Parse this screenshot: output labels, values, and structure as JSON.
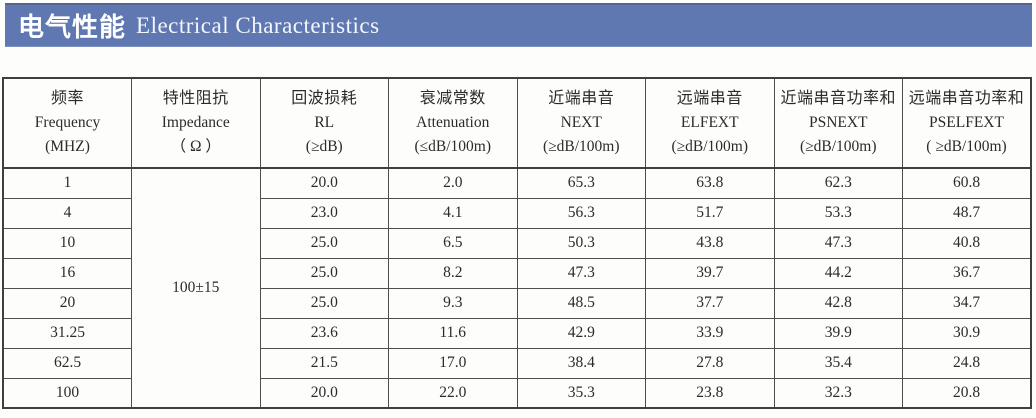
{
  "banner": {
    "title_zh": "电气性能",
    "title_en": "Electrical Characteristics",
    "bg_color": "#5f78b2"
  },
  "table": {
    "columns": [
      {
        "zh": "频率",
        "en": "Frequency",
        "unit": "(MHZ)"
      },
      {
        "zh": "特性阻抗",
        "en": "Impedance",
        "unit": "（ Ω ）"
      },
      {
        "zh": "回波损耗",
        "en": "RL",
        "unit": "(≥dB)"
      },
      {
        "zh": "衰减常数",
        "en": "Attenuation",
        "unit": "(≤dB/100m)"
      },
      {
        "zh": "近端串音",
        "en": "NEXT",
        "unit": "(≥dB/100m)"
      },
      {
        "zh": "远端串音",
        "en": "ELFEXT",
        "unit": "(≥dB/100m)"
      },
      {
        "zh": "近端串音功率和",
        "en": "PSNEXT",
        "unit": "(≥dB/100m)"
      },
      {
        "zh": "远端串音功率和",
        "en": "PSELFEXT",
        "unit": "( ≥dB/100m)"
      }
    ],
    "impedance_value": "100±15",
    "rows": [
      {
        "frequency": "1",
        "rl": "20.0",
        "attenuation": "2.0",
        "next": "65.3",
        "elfext": "63.8",
        "psnext": "62.3",
        "pselfext": "60.8"
      },
      {
        "frequency": "4",
        "rl": "23.0",
        "attenuation": "4.1",
        "next": "56.3",
        "elfext": "51.7",
        "psnext": "53.3",
        "pselfext": "48.7"
      },
      {
        "frequency": "10",
        "rl": "25.0",
        "attenuation": "6.5",
        "next": "50.3",
        "elfext": "43.8",
        "psnext": "47.3",
        "pselfext": "40.8"
      },
      {
        "frequency": "16",
        "rl": "25.0",
        "attenuation": "8.2",
        "next": "47.3",
        "elfext": "39.7",
        "psnext": "44.2",
        "pselfext": "36.7"
      },
      {
        "frequency": "20",
        "rl": "25.0",
        "attenuation": "9.3",
        "next": "48.5",
        "elfext": "37.7",
        "psnext": "42.8",
        "pselfext": "34.7"
      },
      {
        "frequency": "31.25",
        "rl": "23.6",
        "attenuation": "11.6",
        "next": "42.9",
        "elfext": "33.9",
        "psnext": "39.9",
        "pselfext": "30.9"
      },
      {
        "frequency": "62.5",
        "rl": "21.5",
        "attenuation": "17.0",
        "next": "38.4",
        "elfext": "27.8",
        "psnext": "35.4",
        "pselfext": "24.8"
      },
      {
        "frequency": "100",
        "rl": "20.0",
        "attenuation": "22.0",
        "next": "35.3",
        "elfext": "23.8",
        "psnext": "32.3",
        "pselfext": "20.8"
      }
    ]
  }
}
